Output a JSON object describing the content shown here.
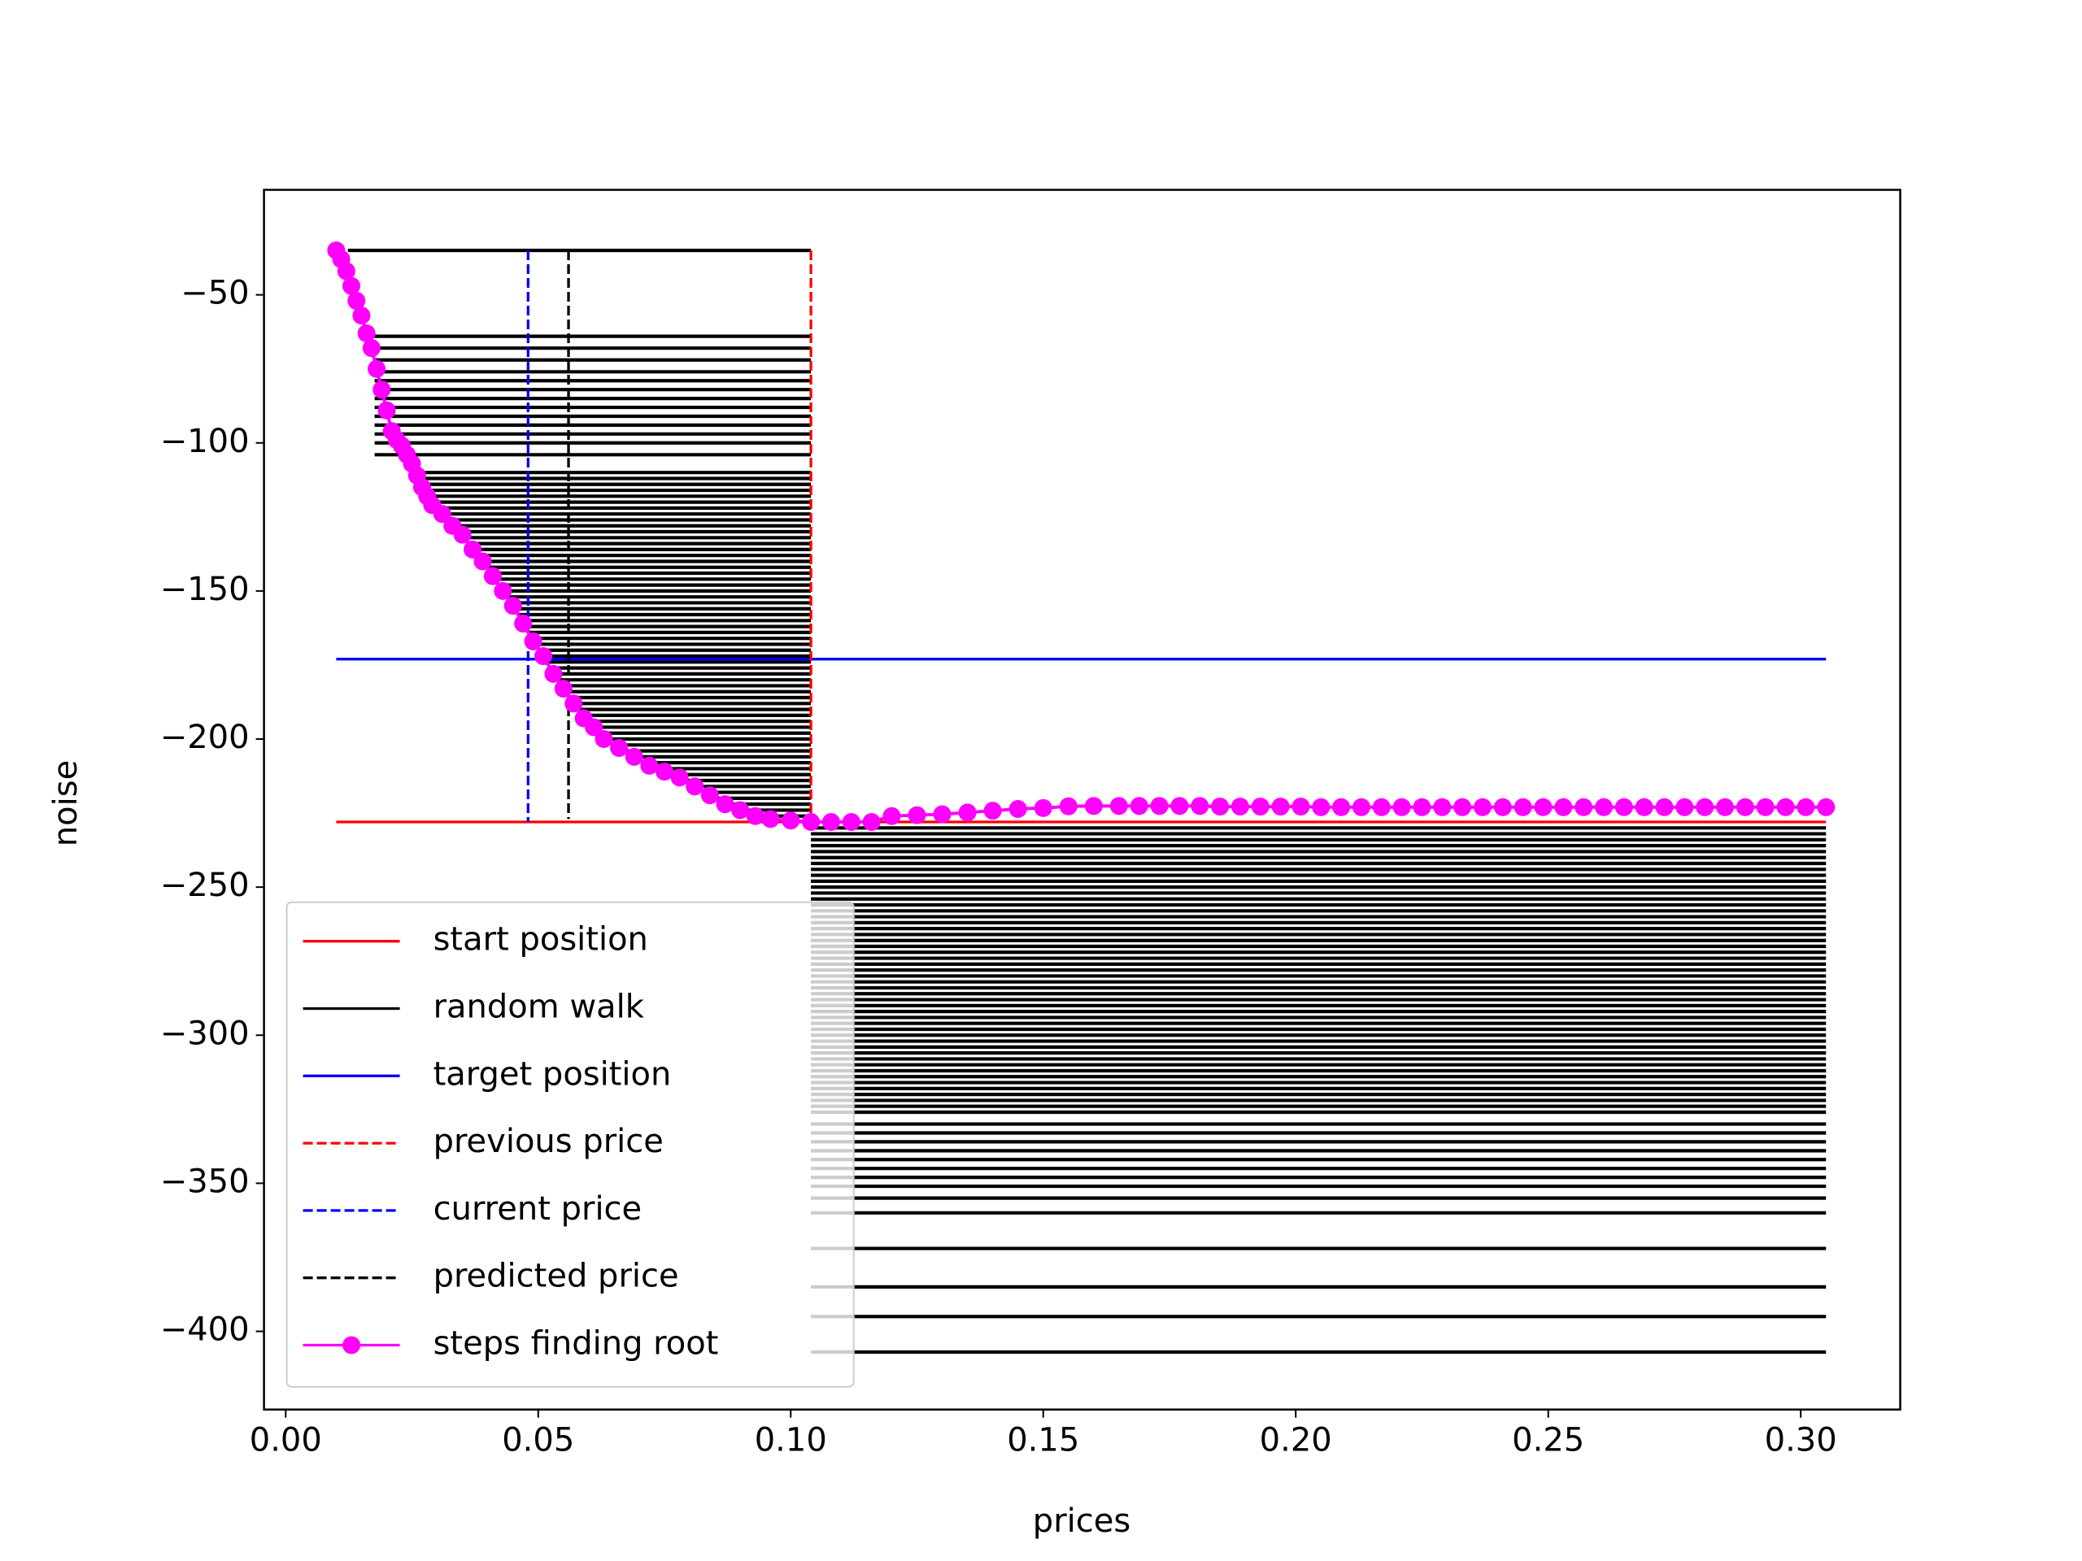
{
  "chart_data": {
    "type": "line",
    "xlabel": "prices",
    "ylabel": "noise",
    "xlim": [
      -0.0043,
      0.3197
    ],
    "ylim": [
      -426.4,
      -14.55
    ],
    "xticks": [
      {
        "value": 0,
        "label": "0.00"
      },
      {
        "value": 0.05,
        "label": "0.05"
      },
      {
        "value": 0.1,
        "label": "0.10"
      },
      {
        "value": 0.15,
        "label": "0.15"
      },
      {
        "value": 0.2,
        "label": "0.20"
      },
      {
        "value": 0.25,
        "label": "0.25"
      },
      {
        "value": 0.3,
        "label": "0.30"
      }
    ],
    "yticks": [
      {
        "value": -50,
        "label": "−50"
      },
      {
        "value": -100,
        "label": "−100"
      },
      {
        "value": -150,
        "label": "−150"
      },
      {
        "value": -200,
        "label": "−200"
      },
      {
        "value": -250,
        "label": "−250"
      },
      {
        "value": -300,
        "label": "−300"
      },
      {
        "value": -350,
        "label": "−350"
      },
      {
        "value": -400,
        "label": "−400"
      }
    ],
    "legend": "lower left",
    "series": [
      {
        "name": "start position",
        "color": "#ff0000",
        "style": "solid",
        "x": [
          0.01,
          0.305
        ],
        "values": [
          -228,
          -228
        ]
      },
      {
        "name": "random walk",
        "color": "#000000",
        "style": "segments",
        "x0": [
          0.0123,
          0.0176,
          0.0176,
          0.0176,
          0.0176,
          0.0176,
          0.0176,
          0.0176,
          0.0176,
          0.0176,
          0.0176,
          0.0176,
          0.0176,
          0.0176,
          0.026,
          0.0265,
          0.027,
          0.0277,
          0.0283,
          0.029,
          0.03,
          0.031,
          0.032,
          0.033,
          0.0343,
          0.0354,
          0.0364,
          0.0373,
          0.0382,
          0.0391,
          0.04,
          0.0408,
          0.0415,
          0.0423,
          0.043,
          0.0438,
          0.0446,
          0.0453,
          0.046,
          0.0467,
          0.0473,
          0.048,
          0.0487,
          0.0493,
          0.05,
          0.0508,
          0.0515,
          0.0523,
          0.053,
          0.0538,
          0.0546,
          0.0554,
          0.0563,
          0.0571,
          0.0579,
          0.0588,
          0.0596,
          0.061,
          0.0623,
          0.0635,
          0.0648,
          0.067,
          0.069,
          0.0711,
          0.0736,
          0.0762,
          0.079,
          0.0808,
          0.0827,
          0.0846,
          0.0878,
          0.0908,
          0.0958,
          0.104,
          0.104,
          0.104,
          0.104,
          0.104,
          0.104,
          0.104,
          0.104,
          0.104,
          0.104,
          0.104,
          0.104,
          0.104,
          0.104,
          0.104,
          0.104,
          0.104,
          0.104,
          0.104,
          0.104,
          0.104,
          0.104,
          0.104,
          0.104,
          0.104,
          0.104,
          0.104,
          0.104,
          0.104,
          0.104,
          0.104,
          0.104,
          0.104,
          0.104,
          0.104,
          0.104,
          0.104,
          0.104,
          0.104,
          0.104,
          0.104,
          0.104,
          0.104,
          0.104,
          0.104,
          0.104,
          0.104,
          0.104,
          0.104,
          0.104,
          0.104,
          0.104,
          0.104,
          0.104,
          0.104,
          0.104,
          0.104,
          0.104,
          0.104,
          0.104,
          0.104,
          0.104,
          0.104
        ],
        "x1": [
          0.104,
          0.104,
          0.104,
          0.104,
          0.104,
          0.104,
          0.104,
          0.104,
          0.104,
          0.104,
          0.104,
          0.104,
          0.104,
          0.104,
          0.104,
          0.104,
          0.104,
          0.104,
          0.104,
          0.104,
          0.104,
          0.104,
          0.104,
          0.104,
          0.104,
          0.104,
          0.104,
          0.104,
          0.104,
          0.104,
          0.104,
          0.104,
          0.104,
          0.104,
          0.104,
          0.104,
          0.104,
          0.104,
          0.104,
          0.104,
          0.104,
          0.104,
          0.104,
          0.104,
          0.104,
          0.104,
          0.104,
          0.104,
          0.104,
          0.104,
          0.104,
          0.104,
          0.104,
          0.104,
          0.104,
          0.104,
          0.104,
          0.104,
          0.104,
          0.104,
          0.104,
          0.104,
          0.104,
          0.104,
          0.104,
          0.104,
          0.104,
          0.104,
          0.104,
          0.104,
          0.104,
          0.104,
          0.104,
          0.305,
          0.305,
          0.305,
          0.305,
          0.305,
          0.305,
          0.305,
          0.305,
          0.305,
          0.305,
          0.305,
          0.305,
          0.305,
          0.305,
          0.305,
          0.305,
          0.305,
          0.305,
          0.305,
          0.305,
          0.305,
          0.305,
          0.305,
          0.305,
          0.305,
          0.305,
          0.305,
          0.305,
          0.305,
          0.305,
          0.305,
          0.305,
          0.305,
          0.305,
          0.305,
          0.305,
          0.305,
          0.305,
          0.305,
          0.305,
          0.305,
          0.305,
          0.305,
          0.305,
          0.305,
          0.305,
          0.305,
          0.305,
          0.305,
          0.305,
          0.305,
          0.305,
          0.305,
          0.305,
          0.305,
          0.305,
          0.305,
          0.305,
          0.305,
          0.305,
          0.305,
          0.305,
          0.305
        ],
        "values": [
          -35,
          -64,
          -68,
          -72,
          -76,
          -79,
          -82,
          -85,
          -88,
          -91,
          -94,
          -97,
          -100,
          -104,
          -110,
          -112,
          -114,
          -116,
          -118,
          -120,
          -122,
          -124,
          -126,
          -128,
          -130,
          -132,
          -134,
          -136,
          -138,
          -140,
          -142,
          -144,
          -146,
          -148,
          -150,
          -152,
          -154,
          -156,
          -158,
          -160,
          -162,
          -164,
          -166,
          -168,
          -170,
          -172,
          -174,
          -176,
          -178,
          -180,
          -182,
          -184,
          -186,
          -188,
          -190,
          -192,
          -194,
          -196,
          -198,
          -200,
          -202,
          -204,
          -206,
          -208,
          -210,
          -212,
          -214,
          -216,
          -218,
          -220,
          -222,
          -224,
          -226,
          -230,
          -232,
          -234,
          -236,
          -238,
          -240,
          -242,
          -244,
          -246,
          -248,
          -250,
          -252,
          -254,
          -256,
          -258,
          -260,
          -262,
          -264,
          -266,
          -268,
          -270,
          -272,
          -274,
          -276,
          -278,
          -280,
          -282,
          -284,
          -286,
          -288,
          -290,
          -292,
          -294,
          -296,
          -298,
          -300,
          -302,
          -304,
          -306,
          -308,
          -310,
          -312,
          -314,
          -316,
          -318,
          -320,
          -322,
          -324,
          -326,
          -330,
          -333,
          -336,
          -339,
          -342,
          -345,
          -348,
          -351,
          -355,
          -360,
          -372,
          -385,
          -395,
          -407
        ]
      },
      {
        "name": "target position",
        "color": "#0000ff",
        "style": "solid",
        "x": [
          0.01,
          0.305
        ],
        "values": [
          -173,
          -173
        ]
      },
      {
        "name": "previous price",
        "color": "#ff0000",
        "style": "dashed",
        "x": [
          0.104,
          0.104
        ],
        "values": [
          -35,
          -228
        ]
      },
      {
        "name": "current price",
        "color": "#0000ff",
        "style": "dashed",
        "x": [
          0.048,
          0.048
        ],
        "values": [
          -35,
          -228
        ]
      },
      {
        "name": "predicted price",
        "color": "#000000",
        "style": "dashed",
        "x": [
          0.056,
          0.056
        ],
        "values": [
          -35,
          -227
        ]
      },
      {
        "name": "steps finding root",
        "color": "#ff00ff",
        "style": "marker",
        "x": [
          0.01,
          0.011,
          0.012,
          0.013,
          0.014,
          0.015,
          0.016,
          0.017,
          0.018,
          0.019,
          0.02,
          0.021,
          0.022,
          0.023,
          0.024,
          0.025,
          0.026,
          0.027,
          0.028,
          0.029,
          0.031,
          0.033,
          0.035,
          0.037,
          0.039,
          0.041,
          0.043,
          0.045,
          0.047,
          0.049,
          0.051,
          0.053,
          0.055,
          0.057,
          0.059,
          0.061,
          0.063,
          0.066,
          0.069,
          0.072,
          0.075,
          0.078,
          0.081,
          0.084,
          0.087,
          0.09,
          0.093,
          0.096,
          0.1,
          0.104,
          0.108,
          0.112,
          0.116,
          0.12,
          0.125,
          0.13,
          0.135,
          0.14,
          0.145,
          0.15,
          0.155,
          0.16,
          0.165,
          0.169,
          0.173,
          0.177,
          0.181,
          0.185,
          0.189,
          0.193,
          0.197,
          0.201,
          0.205,
          0.209,
          0.213,
          0.217,
          0.221,
          0.225,
          0.229,
          0.233,
          0.237,
          0.241,
          0.245,
          0.249,
          0.253,
          0.257,
          0.261,
          0.265,
          0.269,
          0.273,
          0.277,
          0.281,
          0.285,
          0.289,
          0.293,
          0.297,
          0.301,
          0.305
        ],
        "values": [
          -35,
          -38,
          -42,
          -47,
          -52,
          -57,
          -63,
          -68,
          -75,
          -82,
          -89,
          -96,
          -99,
          -101,
          -104,
          -107,
          -111,
          -115,
          -118,
          -121,
          -124,
          -128,
          -131,
          -136,
          -140,
          -145,
          -150,
          -155,
          -161,
          -167,
          -172,
          -178,
          -183,
          -188,
          -193,
          -196,
          -200,
          -203,
          -206,
          -209,
          -211,
          -213,
          -216,
          -219,
          -222,
          -224,
          -226,
          -227,
          -227.5,
          -228,
          -228,
          -228,
          -228,
          -226,
          -225.7,
          -225.4,
          -224.8,
          -224.2,
          -223.6,
          -223.3,
          -222.7,
          -222.6,
          -222.6,
          -222.6,
          -222.6,
          -222.6,
          -222.6,
          -222.8,
          -222.8,
          -222.8,
          -222.8,
          -222.8,
          -223,
          -223,
          -223,
          -223,
          -223,
          -223,
          -223,
          -223,
          -223,
          -223,
          -223,
          -223,
          -223,
          -223,
          -223,
          -223,
          -223,
          -223,
          -223,
          -223,
          -223,
          -223,
          -223,
          -223,
          -223,
          -223
        ]
      }
    ]
  }
}
